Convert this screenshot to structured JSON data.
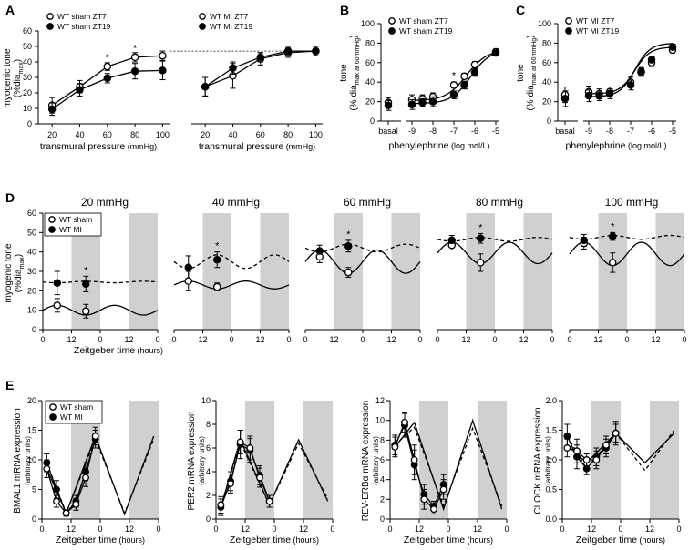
{
  "figure": {
    "panels": [
      "A",
      "B",
      "C",
      "D",
      "E"
    ]
  },
  "chart_data": [
    {
      "id": "A1",
      "type": "line",
      "ylabel": "myogenic tone",
      "ylabel_sub": "(%dia",
      "ylabel_sub2": "max",
      "ylabel_sub3": ")",
      "xlabel": "transmural pressure",
      "xunit": " (mmHg)",
      "xlim": [
        10,
        105
      ],
      "ylim": [
        0,
        60
      ],
      "xticks": [
        20,
        40,
        60,
        80,
        100
      ],
      "yticks": [
        0,
        10,
        20,
        30,
        40,
        50,
        60
      ],
      "series": [
        {
          "name": "WT sham ZT7",
          "filled": false,
          "x": [
            20,
            40,
            60,
            80,
            100
          ],
          "y": [
            12,
            24,
            37,
            43,
            44
          ],
          "err": [
            5,
            4,
            2.5,
            3,
            3
          ]
        },
        {
          "name": "WT sham ZT19",
          "filled": true,
          "x": [
            20,
            40,
            60,
            80,
            100
          ],
          "y": [
            9.5,
            22,
            29.5,
            34,
            34.5
          ],
          "err": [
            4,
            4,
            3,
            5,
            6
          ]
        }
      ],
      "stars": [
        {
          "x": 60,
          "y": 43,
          "text": "*"
        },
        {
          "x": 80,
          "y": 49,
          "text": "*"
        }
      ]
    },
    {
      "id": "A2",
      "type": "line",
      "xlabel": "transmural pressure",
      "xunit": " (mmHg)",
      "xlim": [
        10,
        105
      ],
      "ylim": [
        0,
        60
      ],
      "xticks": [
        20,
        40,
        60,
        80,
        100
      ],
      "series": [
        {
          "name": "WT MI ZT7",
          "filled": false,
          "x": [
            20,
            40,
            60,
            80,
            100
          ],
          "y": [
            24,
            31,
            42,
            46,
            47
          ],
          "err": [
            6,
            8,
            4,
            3,
            3
          ]
        },
        {
          "name": "WT MI ZT19",
          "filled": true,
          "x": [
            20,
            40,
            60,
            80,
            100
          ],
          "y": [
            24,
            36,
            43,
            47,
            47
          ],
          "err": [
            6,
            4,
            3,
            3,
            3
          ]
        }
      ]
    },
    {
      "id": "B",
      "type": "line",
      "ylabel": "tone",
      "ylabel_sub": "(% dia",
      "ylabel_sub2": "max at 60mmHg",
      "ylabel_sub3": ")",
      "xlabel": "phenylephrine",
      "xunit": " (log mol/L)",
      "ylim": [
        0,
        100
      ],
      "xticks": [
        "basal",
        "-9",
        "-8",
        "-7",
        "-6",
        "-5"
      ],
      "yticks": [
        0,
        20,
        40,
        60,
        80,
        100
      ],
      "series": [
        {
          "name": "WT sham ZT7",
          "filled": false,
          "x": [
            "basal",
            "-9",
            "-8.5",
            "-8",
            "-7",
            "-6.5",
            "-6",
            "-5"
          ],
          "y": [
            19,
            22,
            23,
            25,
            37,
            46,
            58,
            71
          ],
          "err": [
            5,
            5,
            4,
            4,
            3,
            3,
            3,
            3
          ]
        },
        {
          "name": "WT sham ZT19",
          "filled": true,
          "x": [
            "basal",
            "-9",
            "-8.5",
            "-8",
            "-7",
            "-6.5",
            "-6",
            "-5"
          ],
          "y": [
            16,
            17,
            19,
            20,
            27,
            37,
            50,
            70
          ],
          "err": [
            5,
            5,
            4,
            5,
            4,
            4,
            4,
            3
          ]
        }
      ],
      "stars": [
        {
          "x": -7,
          "y": 47,
          "text": "*"
        }
      ]
    },
    {
      "id": "C",
      "type": "line",
      "ylabel": "tone",
      "ylabel_sub": "(% dia",
      "ylabel_sub2": "max at 60mmHg",
      "ylabel_sub3": ")",
      "xlabel": "phenylephrine",
      "xunit": " (log mol/L)",
      "ylim": [
        0,
        100
      ],
      "xticks": [
        "basal",
        "-9",
        "-8",
        "-7",
        "-6",
        "-5"
      ],
      "yticks": [
        0,
        20,
        40,
        60,
        80,
        100
      ],
      "series": [
        {
          "name": "WT MI ZT7",
          "filled": false,
          "x": [
            "basal",
            "-9",
            "-8.5",
            "-8",
            "-7",
            "-6.5",
            "-6",
            "-5"
          ],
          "y": [
            27,
            30,
            28,
            30,
            40,
            51,
            60,
            73
          ],
          "err": [
            8,
            6,
            5,
            5,
            5,
            4,
            4,
            3
          ]
        },
        {
          "name": "WT MI ZT19",
          "filled": true,
          "x": [
            "basal",
            "-9",
            "-8.5",
            "-8",
            "-7",
            "-6.5",
            "-6",
            "-5"
          ],
          "y": [
            23,
            26,
            26,
            28,
            37,
            50,
            63,
            76
          ],
          "err": [
            8,
            6,
            5,
            5,
            5,
            4,
            3,
            3
          ]
        }
      ]
    },
    {
      "id": "D",
      "type": "line",
      "ylabel": "myogenic tone",
      "ylabel_sub": "(%dia",
      "ylabel_sub2": "max",
      "ylabel_sub3": ")",
      "xlabel": "Zeitgeber time",
      "xunit": " (hours)",
      "ylim": [
        0,
        60
      ],
      "yticks": [
        0,
        10,
        20,
        30,
        40,
        50,
        60
      ],
      "xticks": [
        "0",
        "12",
        "0",
        "12",
        "0"
      ],
      "legend": [
        "WT sham",
        "WT MI"
      ],
      "subplots": [
        {
          "title": "20 mmHg",
          "sham": [
            12.5,
            9.5
          ],
          "mi": [
            24,
            23.5
          ],
          "sham_err": [
            3.5,
            3.5
          ],
          "mi_err": [
            6,
            4
          ],
          "sham_mesor": 10,
          "sham_amp": 2.5,
          "mi_mesor": 24.5,
          "mi_amp": 0.4,
          "star": true
        },
        {
          "title": "40 mmHg",
          "sham": [
            25,
            22
          ],
          "mi": [
            32,
            36
          ],
          "sham_err": [
            5,
            2
          ],
          "mi_err": [
            6,
            4
          ],
          "sham_mesor": 23,
          "sham_amp": 2,
          "mi_mesor": 35,
          "mi_amp": 3.5,
          "star": true
        },
        {
          "title": "60 mmHg",
          "sham": [
            37.5,
            29.5
          ],
          "mi": [
            40.5,
            43
          ],
          "sham_err": [
            3,
            2.5
          ],
          "mi_err": [
            3,
            3
          ],
          "sham_mesor": 35,
          "sham_amp": 6,
          "mi_mesor": 42,
          "mi_amp": 2,
          "star": true
        },
        {
          "title": "80 mmHg",
          "sham": [
            43.5,
            34.5
          ],
          "mi": [
            46,
            47
          ],
          "sham_err": [
            2.5,
            4.5
          ],
          "mi_err": [
            2.5,
            2.5
          ],
          "sham_mesor": 39.5,
          "sham_amp": 5.5,
          "mi_mesor": 46.5,
          "mi_amp": 1,
          "star": true
        },
        {
          "title": "100 mmHg",
          "sham": [
            44.5,
            34.5
          ],
          "mi": [
            46,
            48
          ],
          "sham_err": [
            3,
            5
          ],
          "mi_err": [
            3,
            2
          ],
          "sham_mesor": 39,
          "sham_amp": 6,
          "mi_mesor": 47.5,
          "mi_amp": 1,
          "star": true
        }
      ]
    },
    {
      "id": "E",
      "type": "line",
      "xlabel": "Zeitgeber time",
      "xunit": " (hours)",
      "xticks": [
        "0",
        "12",
        "0",
        "12",
        "0"
      ],
      "legend": [
        "WT sham",
        "WT MI"
      ],
      "x_hours": [
        2,
        6,
        10,
        14,
        18,
        22
      ],
      "subplots": [
        {
          "ylabel": "BMAL1 mRNA expression",
          "unit": "(arbitrary units)",
          "ylim": [
            0,
            20
          ],
          "yticks": [
            0,
            5,
            10,
            15,
            20
          ],
          "sham": [
            8.5,
            3.0,
            1.0,
            2.5,
            7.0,
            14.0
          ],
          "mi": [
            9.5,
            5.0,
            1.0,
            3.0,
            8.0,
            13.5
          ],
          "sham_err": [
            1.5,
            1,
            0.5,
            1,
            1.5,
            1.5
          ],
          "mi_err": [
            1.5,
            1.5,
            0.5,
            1,
            1.5,
            1.5
          ],
          "fit_sham": [
            8.5,
            1.0,
            14.0,
            0.8,
            14.0
          ],
          "fit_mi": [
            9.5,
            1.0,
            13.5,
            1.0,
            13.5
          ]
        },
        {
          "ylabel": "PER2 mRNA expression",
          "unit": "(arbitrary units)",
          "ylim": [
            0,
            10
          ],
          "yticks": [
            0,
            2,
            4,
            6,
            8,
            10
          ],
          "sham": [
            1.2,
            3.0,
            6.5,
            6.0,
            3.5,
            1.5
          ],
          "mi": [
            1.0,
            3.2,
            6.3,
            5.8,
            3.7,
            1.5
          ],
          "sham_err": [
            0.7,
            0.8,
            1,
            1,
            0.8,
            0.5
          ],
          "mi_err": [
            0.7,
            0.8,
            1.2,
            1,
            0.8,
            0.5
          ],
          "fit_sham": [
            1.0,
            6.7,
            1.2,
            6.7,
            1.5
          ],
          "fit_mi": [
            1.0,
            6.5,
            1.2,
            6.4,
            1.7
          ]
        },
        {
          "ylabel": "REV-ERBα mRNA expression",
          "unit": "(arbitrary units)",
          "ylim": [
            0,
            12
          ],
          "yticks": [
            0,
            2,
            4,
            6,
            8,
            10,
            12
          ],
          "sham": [
            7.3,
            9.8,
            6.0,
            2.0,
            1.0,
            3.0
          ],
          "mi": [
            7.5,
            9.5,
            5.5,
            2.5,
            1.3,
            3.5
          ],
          "sham_err": [
            1,
            1,
            1.5,
            1,
            0.5,
            1
          ],
          "mi_err": [
            1,
            1.2,
            1.5,
            1,
            0.5,
            1
          ],
          "fit_sham": [
            7.3,
            9.8,
            1.0,
            10.0,
            1.0
          ],
          "fit_mi": [
            7.5,
            9.3,
            1.3,
            9.2,
            1.3
          ]
        },
        {
          "ylabel": "CLOCK mRNA expression",
          "unit": "(arbitrary units)",
          "ylim": [
            0,
            2.0
          ],
          "yticks": [
            "0.0",
            "0.5",
            "1.0",
            "1.5",
            "2.0"
          ],
          "sham": [
            1.2,
            1.15,
            1.0,
            1.0,
            1.25,
            1.45
          ],
          "mi": [
            1.4,
            1.05,
            0.85,
            1.05,
            1.2,
            1.45
          ],
          "sham_err": [
            0.15,
            0.2,
            0.1,
            0.15,
            0.15,
            0.15
          ],
          "mi_err": [
            0.2,
            0.2,
            0.1,
            0.15,
            0.15,
            0.2
          ],
          "fit_sham": [
            1.25,
            0.95,
            1.45,
            0.95,
            1.45
          ],
          "fit_mi": [
            1.4,
            0.85,
            1.45,
            0.82,
            1.5
          ]
        }
      ]
    }
  ]
}
